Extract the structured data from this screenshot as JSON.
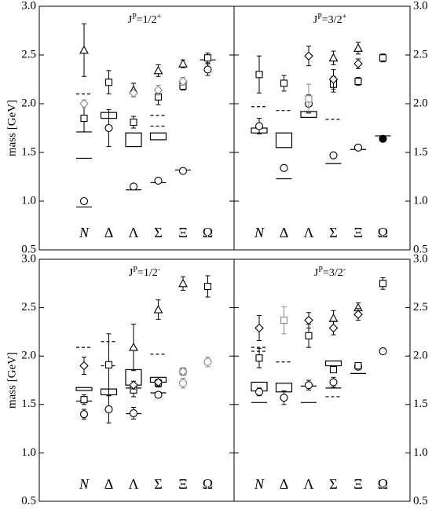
{
  "chart_data": [
    {
      "type": "scatter",
      "title": [
        "J",
        "P",
        "=1/2",
        "+"
      ],
      "ylabel": "mass [GeV]",
      "ytick_side": "left",
      "categories": [
        "N",
        "Δ",
        "Λ",
        "Σ",
        "Ξ",
        "Ω"
      ],
      "ylim": [
        0.5,
        3.0
      ],
      "yticks": [
        0.5,
        {
          "value": 1,
          "label": "1.0"
        },
        1.5,
        {
          "value": 2,
          "label": "2.0"
        },
        2.5,
        {
          "value": 3,
          "label": "3.0"
        }
      ],
      "series": [
        {
          "marker": "solid-line",
          "color": "#000",
          "x": [
            0,
            0,
            0,
            2,
            3,
            4,
            5
          ],
          "values": [
            1.71,
            1.44,
            0.94,
            1.116,
            1.19,
            1.32,
            2.45
          ]
        },
        {
          "marker": "dashed-line",
          "color": "#000",
          "x": [
            0,
            3,
            3
          ],
          "values": [
            2.1,
            1.88,
            1.77
          ]
        },
        {
          "marker": "box",
          "color": "#000",
          "x": [
            1,
            2,
            3
          ],
          "values": [
            1.88,
            1.63,
            1.665
          ],
          "errors": [
            0.03,
            0.07,
            0.035
          ]
        },
        {
          "marker": "circle",
          "color": "#000",
          "x": [
            0,
            1,
            2,
            3,
            4,
            5
          ],
          "values": [
            1.0,
            1.75,
            1.15,
            1.21,
            1.31,
            2.35
          ],
          "errors": [
            0.02,
            0.19,
            0.02,
            0.02,
            0.01,
            0.06
          ]
        },
        {
          "marker": "square",
          "color": "#000",
          "x": [
            0,
            1,
            2,
            3,
            4,
            5
          ],
          "values": [
            1.85,
            2.22,
            1.81,
            2.07,
            2.18,
            2.47
          ],
          "errors": [
            0.14,
            0.12,
            0.06,
            0.08,
            0.04,
            0.05
          ]
        },
        {
          "marker": "triangle",
          "color": "#000",
          "x": [
            0,
            2,
            3,
            4
          ],
          "values": [
            2.55,
            2.14,
            2.34,
            2.41
          ],
          "errors": [
            0.27,
            0.07,
            0.06,
            0.04
          ]
        },
        {
          "marker": "diamond",
          "color": "#888",
          "x": [
            0,
            2,
            3,
            4
          ],
          "values": [
            2.0,
            2.11,
            2.14,
            2.23
          ],
          "errors": [
            0.04,
            0.04,
            0.05,
            0.04
          ]
        }
      ]
    },
    {
      "type": "scatter",
      "title": [
        "J",
        "P",
        "=3/2",
        "+"
      ],
      "ytick_side": "right",
      "categories": [
        "N",
        "Δ",
        "Λ",
        "Σ",
        "Ξ",
        "Ω"
      ],
      "ylim": [
        0.5,
        3.0
      ],
      "yticks": [
        0.5,
        {
          "value": 1,
          "label": "1.0"
        },
        1.5,
        {
          "value": 2,
          "label": "2.0"
        },
        2.5,
        {
          "value": 3,
          "label": "3.0"
        }
      ],
      "series": [
        {
          "marker": "solid-line",
          "color": "#000",
          "x": [
            1,
            3,
            4,
            5
          ],
          "values": [
            1.23,
            1.385,
            1.53,
            1.67
          ]
        },
        {
          "marker": "dashed-line",
          "color": "#000",
          "x": [
            0,
            1,
            3
          ],
          "values": [
            1.97,
            1.93,
            1.84
          ]
        },
        {
          "marker": "box",
          "color": "#000",
          "x": [
            0,
            1,
            2
          ],
          "values": [
            1.725,
            1.625,
            1.89
          ],
          "errors": [
            0.025,
            0.075,
            0.03
          ]
        },
        {
          "marker": "circle",
          "color": "#000",
          "x": [
            0,
            1,
            2,
            3,
            4
          ],
          "values": [
            1.77,
            1.34,
            2.0,
            1.47,
            1.55
          ],
          "errors": [
            0.08,
            0.03,
            0.09,
            0.03,
            0.02
          ]
        },
        {
          "marker": "filled-circle",
          "color": "#000",
          "x": [
            5
          ],
          "values": [
            1.64
          ]
        },
        {
          "marker": "square",
          "color": "#000",
          "x": [
            0,
            1,
            3,
            4,
            5
          ],
          "values": [
            2.3,
            2.21,
            2.2,
            2.23,
            2.47
          ],
          "errors": [
            0.19,
            0.08,
            0.08,
            0.04,
            0.04
          ]
        },
        {
          "marker": "square",
          "color": "#888",
          "x": [
            2
          ],
          "values": [
            2.05
          ],
          "errors": [
            0.15
          ]
        },
        {
          "marker": "triangle",
          "color": "#000",
          "x": [
            3,
            4
          ],
          "values": [
            2.47,
            2.57
          ],
          "errors": [
            0.07,
            0.06
          ]
        },
        {
          "marker": "diamond",
          "color": "#000",
          "x": [
            2,
            3,
            4
          ],
          "values": [
            2.49,
            2.25,
            2.41
          ],
          "errors": [
            0.1,
            0.1,
            0.05
          ]
        }
      ]
    },
    {
      "type": "scatter",
      "title": [
        "J",
        "P",
        "=1/2",
        "-"
      ],
      "ylabel": "mass [GeV]",
      "ytick_side": "left",
      "categories": [
        "N",
        "Δ",
        "Λ",
        "Σ",
        "Ξ",
        "Ω"
      ],
      "ylim": [
        0.5,
        3.0
      ],
      "yticks": [
        0.5,
        {
          "value": 1,
          "label": "1.0"
        },
        1.5,
        {
          "value": 2,
          "label": "2.0"
        },
        2.5,
        {
          "value": 3,
          "label": "3.0"
        }
      ],
      "series": [
        {
          "marker": "solid-line",
          "color": "#000",
          "x": [
            0,
            2,
            2,
            3
          ],
          "values": [
            1.535,
            1.67,
            1.405,
            1.62
          ]
        },
        {
          "marker": "dashed-line",
          "color": "#000",
          "x": [
            0,
            1,
            1,
            3
          ],
          "values": [
            2.09,
            2.15,
            1.9,
            2.02
          ]
        },
        {
          "marker": "box",
          "color": "#000",
          "x": [
            0,
            1,
            2,
            3
          ],
          "values": [
            1.66,
            1.63,
            1.78,
            1.755
          ],
          "errors": [
            0.015,
            0.03,
            0.08,
            0.025
          ]
        },
        {
          "marker": "circle",
          "color": "#000",
          "x": [
            0,
            1,
            2,
            3
          ],
          "values": [
            1.4,
            1.45,
            1.41,
            1.6
          ],
          "errors": [
            0.05,
            0.14,
            0.06,
            0.03
          ]
        },
        {
          "marker": "circle",
          "color": "#888",
          "x": [
            4,
            5
          ],
          "values": [
            1.72,
            1.94
          ],
          "errors": [
            0.05,
            0.05
          ]
        },
        {
          "marker": "square",
          "color": "#000",
          "x": [
            0,
            1,
            2,
            3,
            5
          ],
          "values": [
            1.55,
            1.91,
            1.65,
            1.72,
            2.72
          ],
          "errors": [
            0.05,
            0.32,
            0.07,
            0.04,
            0.11
          ]
        },
        {
          "marker": "square",
          "color": "#888",
          "x": [
            4
          ],
          "values": [
            1.84
          ],
          "errors": [
            0.04
          ]
        },
        {
          "marker": "triangle",
          "color": "#000",
          "x": [
            2,
            3,
            4
          ],
          "values": [
            2.09,
            2.48,
            2.75
          ],
          "errors": [
            0.24,
            0.1,
            0.07
          ]
        },
        {
          "marker": "diamond",
          "color": "#000",
          "x": [
            0,
            2,
            3
          ],
          "values": [
            1.9,
            1.7,
            1.73
          ],
          "errors": [
            0.09,
            0.04,
            0.03
          ]
        },
        {
          "marker": "diamond",
          "color": "#888",
          "x": [
            4
          ],
          "values": [
            1.84
          ],
          "errors": [
            0.03
          ]
        }
      ]
    },
    {
      "type": "scatter",
      "title": [
        "J",
        "P",
        "=3/2",
        "-"
      ],
      "ytick_side": "right",
      "categories": [
        "N",
        "Δ",
        "Λ",
        "Σ",
        "Ξ",
        "Ω"
      ],
      "ylim": [
        0.5,
        3.0
      ],
      "yticks": [
        0.5,
        {
          "value": 1,
          "label": "1.0"
        },
        1.5,
        {
          "value": 2,
          "label": "2.0"
        },
        2.5,
        {
          "value": 3,
          "label": "3.0"
        }
      ],
      "series": [
        {
          "marker": "solid-line",
          "color": "#000",
          "x": [
            0,
            2,
            2,
            3,
            4
          ],
          "values": [
            1.52,
            1.69,
            1.52,
            1.67,
            1.82
          ]
        },
        {
          "marker": "dashed-line",
          "color": "#000",
          "x": [
            0,
            0,
            1,
            3
          ],
          "values": [
            2.09,
            2.05,
            1.94,
            1.58
          ]
        },
        {
          "marker": "box",
          "color": "#000",
          "x": [
            0,
            1,
            3
          ],
          "values": [
            1.685,
            1.675,
            1.925
          ],
          "errors": [
            0.045,
            0.045,
            0.025
          ]
        },
        {
          "marker": "circle",
          "color": "#000",
          "x": [
            0,
            1,
            2,
            3,
            4,
            5
          ],
          "values": [
            1.63,
            1.57,
            1.7,
            1.73,
            1.89,
            2.05
          ],
          "errors": [
            0.04,
            0.07,
            0.05,
            0.05,
            0.02,
            0.03
          ]
        },
        {
          "marker": "square",
          "color": "#000",
          "x": [
            0,
            2,
            3,
            4,
            5
          ],
          "values": [
            1.98,
            2.21,
            1.86,
            1.9,
            2.75
          ],
          "errors": [
            0.1,
            0.12,
            0.03,
            0.03,
            0.06
          ]
        },
        {
          "marker": "square",
          "color": "#888",
          "x": [
            1
          ],
          "values": [
            2.37
          ],
          "errors": [
            0.14
          ]
        },
        {
          "marker": "triangle",
          "color": "#000",
          "x": [
            3,
            4
          ],
          "values": [
            2.39,
            2.5
          ],
          "errors": [
            0.08,
            0.05
          ]
        },
        {
          "marker": "diamond",
          "color": "#000",
          "x": [
            0,
            2,
            3,
            4
          ],
          "values": [
            2.29,
            2.37,
            2.29,
            2.43
          ],
          "errors": [
            0.13,
            0.08,
            0.07,
            0.06
          ]
        }
      ]
    }
  ]
}
